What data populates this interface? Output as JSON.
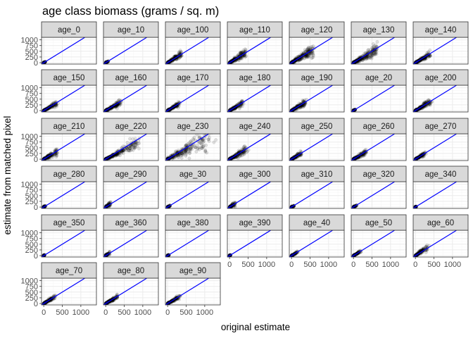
{
  "chart_data": {
    "type": "scatter",
    "title": "age class biomass (grams / sq. m)",
    "xlabel": "original estimate",
    "ylabel": "estimate from matched pixel",
    "xlim": [
      -60,
      1420
    ],
    "ylim": [
      -60,
      1110
    ],
    "x_ticks": [
      0,
      500,
      1000
    ],
    "x_tick_labels": [
      "0",
      "500",
      "1000"
    ],
    "y_ticks": [
      0,
      250,
      500,
      750,
      1000
    ],
    "y_tick_labels": [
      "0",
      "250",
      "500",
      "750",
      "1000"
    ],
    "grid": true,
    "reference_line": {
      "type": "identity",
      "slope": 1,
      "intercept": 0
    },
    "facets": [
      {
        "label": "age_0",
        "x_max": 45,
        "y_max": 40,
        "spread": 0.2
      },
      {
        "label": "age_10",
        "x_max": 80,
        "y_max": 75,
        "spread": 0.2
      },
      {
        "label": "age_100",
        "x_max": 380,
        "y_max": 380,
        "spread": 0.35
      },
      {
        "label": "age_110",
        "x_max": 420,
        "y_max": 420,
        "spread": 0.4
      },
      {
        "label": "age_120",
        "x_max": 580,
        "y_max": 570,
        "spread": 0.45
      },
      {
        "label": "age_130",
        "x_max": 620,
        "y_max": 560,
        "spread": 0.4
      },
      {
        "label": "age_140",
        "x_max": 380,
        "y_max": 350,
        "spread": 0.3
      },
      {
        "label": "age_150",
        "x_max": 340,
        "y_max": 300,
        "spread": 0.3
      },
      {
        "label": "age_160",
        "x_max": 400,
        "y_max": 360,
        "spread": 0.3
      },
      {
        "label": "age_170",
        "x_max": 330,
        "y_max": 310,
        "spread": 0.3
      },
      {
        "label": "age_180",
        "x_max": 340,
        "y_max": 320,
        "spread": 0.35
      },
      {
        "label": "age_190",
        "x_max": 380,
        "y_max": 360,
        "spread": 0.35
      },
      {
        "label": "age_20",
        "x_max": 60,
        "y_max": 55,
        "spread": 0.2
      },
      {
        "label": "age_200",
        "x_max": 420,
        "y_max": 400,
        "spread": 0.35
      },
      {
        "label": "age_210",
        "x_max": 350,
        "y_max": 330,
        "spread": 0.45
      },
      {
        "label": "age_220",
        "x_max": 850,
        "y_max": 700,
        "spread": 0.35
      },
      {
        "label": "age_230",
        "x_max": 1180,
        "y_max": 1000,
        "spread": 0.55
      },
      {
        "label": "age_240",
        "x_max": 450,
        "y_max": 420,
        "spread": 0.4
      },
      {
        "label": "age_250",
        "x_max": 280,
        "y_max": 270,
        "spread": 0.35
      },
      {
        "label": "age_260",
        "x_max": 330,
        "y_max": 300,
        "spread": 0.35
      },
      {
        "label": "age_270",
        "x_max": 260,
        "y_max": 250,
        "spread": 0.3
      },
      {
        "label": "age_280",
        "x_max": 50,
        "y_max": 50,
        "spread": 0.3
      },
      {
        "label": "age_290",
        "x_max": 130,
        "y_max": 140,
        "spread": 0.6
      },
      {
        "label": "age_30",
        "x_max": 70,
        "y_max": 60,
        "spread": 0.25
      },
      {
        "label": "age_300",
        "x_max": 160,
        "y_max": 150,
        "spread": 0.6
      },
      {
        "label": "age_310",
        "x_max": 70,
        "y_max": 60,
        "spread": 0.4
      },
      {
        "label": "age_320",
        "x_max": 90,
        "y_max": 70,
        "spread": 0.4
      },
      {
        "label": "age_340",
        "x_max": 25,
        "y_max": 25,
        "spread": 0.2
      },
      {
        "label": "age_350",
        "x_max": 25,
        "y_max": 25,
        "spread": 0.2
      },
      {
        "label": "age_360",
        "x_max": 110,
        "y_max": 120,
        "spread": 0.5
      },
      {
        "label": "age_380",
        "x_max": 40,
        "y_max": 30,
        "spread": 0.2
      },
      {
        "label": "age_390",
        "x_max": 30,
        "y_max": 25,
        "spread": 0.2
      },
      {
        "label": "age_40",
        "x_max": 160,
        "y_max": 150,
        "spread": 0.25
      },
      {
        "label": "age_50",
        "x_max": 200,
        "y_max": 190,
        "spread": 0.25
      },
      {
        "label": "age_60",
        "x_max": 330,
        "y_max": 380,
        "spread": 0.35
      },
      {
        "label": "age_70",
        "x_max": 300,
        "y_max": 290,
        "spread": 0.3
      },
      {
        "label": "age_80",
        "x_max": 330,
        "y_max": 320,
        "spread": 0.3
      },
      {
        "label": "age_90",
        "x_max": 320,
        "y_max": 300,
        "spread": 0.3
      }
    ],
    "ncol": 7,
    "nrow": 6,
    "colors": {
      "point": "#000000",
      "reference_line": "#0000ff",
      "strip_fill": "#d9d9d9",
      "strip_border": "#333333",
      "panel_border": "#333333",
      "grid_major": "#ebebeb",
      "grid_minor": "#f5f5f5"
    }
  }
}
